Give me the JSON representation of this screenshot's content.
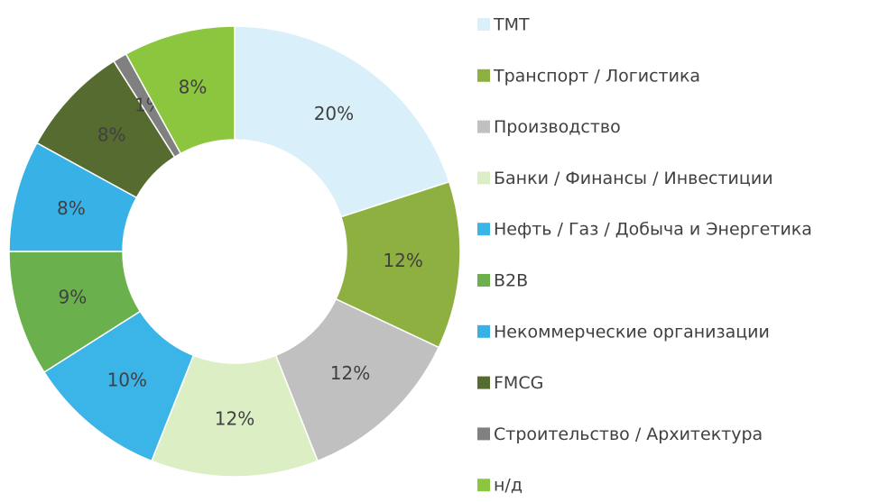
{
  "chart_data": {
    "type": "donut",
    "categories": [
      "TMT",
      "Транспорт / Логистика",
      "Производство",
      "Банки / Финансы / Инвестиции",
      "Нефть / Газ / Добыча и Энергетика",
      "B2B",
      "Некоммерческие организации",
      "FMCG",
      "Строительство / Архитектура",
      "н/д"
    ],
    "values": [
      20,
      12,
      12,
      12,
      10,
      9,
      8,
      8,
      1,
      8
    ],
    "value_labels": [
      "20%",
      "12%",
      "12%",
      "12%",
      "10%",
      "9%",
      "8%",
      "8%",
      "1%",
      "8%"
    ],
    "colors": [
      "#d9f0fa",
      "#8db040",
      "#c0c0c0",
      "#dcefc4",
      "#3bb4e8",
      "#6ab04c",
      "#38b2e6",
      "#556b2f",
      "#808080",
      "#8cc63f"
    ],
    "legend": "right"
  }
}
